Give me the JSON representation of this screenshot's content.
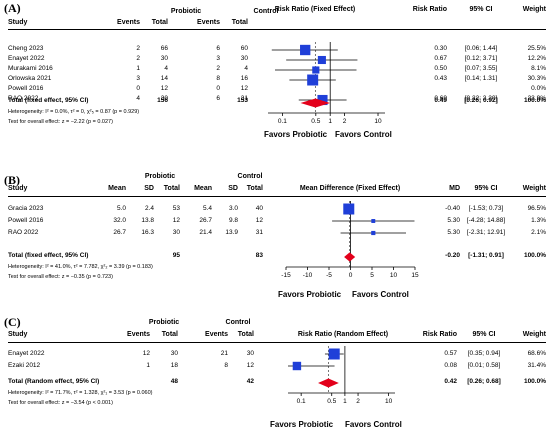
{
  "panels": [
    {
      "label": "(A)",
      "head": {
        "study": "Study",
        "group1": "Probiotic",
        "group2": "Control",
        "g1c1": "Events",
        "g1c2": "Total",
        "g2c1": "Events",
        "g2c2": "Total",
        "plot_title": "Risk Ratio (Fixed Effect)",
        "effect": "Risk Ratio",
        "ci": "95% CI",
        "weight": "Weight"
      },
      "rows": [
        {
          "study": "Cheng 2023",
          "v1": "2",
          "v2": "66",
          "v3": "6",
          "v4": "60",
          "effect": "0.30",
          "ci": "[0.06; 1.44]",
          "weight": "25.5%"
        },
        {
          "study": "Enayet 2022",
          "v1": "2",
          "v2": "30",
          "v3": "3",
          "v4": "30",
          "effect": "0.67",
          "ci": "[0.12; 3.71]",
          "weight": "12.2%"
        },
        {
          "study": "Murakami 2016",
          "v1": "1",
          "v2": "4",
          "v3": "2",
          "v4": "4",
          "effect": "0.50",
          "ci": "[0.07; 3.55]",
          "weight": "8.1%"
        },
        {
          "study": "Orlowska 2021",
          "v1": "3",
          "v2": "14",
          "v3": "8",
          "v4": "16",
          "effect": "0.43",
          "ci": "[0.14; 1.31]",
          "weight": "30.3%"
        },
        {
          "study": "Powell 2016",
          "v1": "0",
          "v2": "12",
          "v3": "0",
          "v4": "12",
          "effect": "",
          "ci": "",
          "weight": "0.0%"
        },
        {
          "study": "RAO 2022",
          "v1": "4",
          "v2": "30",
          "v3": "6",
          "v4": "31",
          "effect": "0.69",
          "ci": "[0.22; 2.20]",
          "weight": "23.9%"
        }
      ],
      "total": {
        "label": "Total (fixed effect, 95% CI)",
        "n1": "156",
        "n2": "153",
        "effect": "0.49",
        "ci": "[0.26; 0.92]",
        "weight": "100.0%"
      },
      "heterogeneity": "Heterogeneity: I² = 0.0%, τ² = 0, χ²₅ = 0.87 (p = 0.929)",
      "overall": "Test for overall effect: z = −2.22 (p = 0.027)",
      "axis_ticks": [
        "0.1",
        "0.5",
        "1",
        "2",
        "10"
      ],
      "favor_left": "Favors Probiotic",
      "favor_right": "Favors Control"
    },
    {
      "label": "(B)",
      "head": {
        "study": "Study",
        "group1": "Probiotic",
        "group2": "Control",
        "g1c1": "Mean",
        "g1c2": "SD",
        "g1c3": "Total",
        "g2c1": "Mean",
        "g2c2": "SD",
        "g2c3": "Total",
        "plot_title": "Mean Difference (Fixed Effect)",
        "effect": "MD",
        "ci": "95% CI",
        "weight": "Weight"
      },
      "rows": [
        {
          "study": "Gracia 2023",
          "v1": "5.0",
          "v2": "2.4",
          "v3": "53",
          "v4": "5.4",
          "v5": "3.0",
          "v6": "40",
          "effect": "-0.40",
          "ci": "[-1.53; 0.73]",
          "weight": "96.5%"
        },
        {
          "study": "Powell 2016",
          "v1": "32.0",
          "v2": "13.8",
          "v3": "12",
          "v4": "26.7",
          "v5": "9.8",
          "v6": "12",
          "effect": "5.30",
          "ci": "[-4.28; 14.88]",
          "weight": "1.3%"
        },
        {
          "study": "RAO 2022",
          "v1": "26.7",
          "v2": "16.3",
          "v3": "30",
          "v4": "21.4",
          "v5": "13.9",
          "v6": "31",
          "effect": "5.30",
          "ci": "[-2.31; 12.91]",
          "weight": "2.1%"
        }
      ],
      "total": {
        "label": "Total (fixed effect, 95% CI)",
        "n1": "95",
        "n2": "83",
        "effect": "-0.20",
        "ci": "[-1.31; 0.91]",
        "weight": "100.0%"
      },
      "heterogeneity": "Heterogeneity: I² = 41.0%, τ² = 7.782, χ²₂ = 3.39 (p = 0.183)",
      "overall": "Test for overall effect: z = −0.35 (p = 0.723)",
      "axis_ticks": [
        "-15",
        "-10",
        "-5",
        "0",
        "5",
        "10",
        "15"
      ],
      "favor_left": "Favors Probiotic",
      "favor_right": "Favors Control"
    },
    {
      "label": "(C)",
      "head": {
        "study": "Study",
        "group1": "Probiotic",
        "group2": "Control",
        "g1c1": "Events",
        "g1c2": "Total",
        "g2c1": "Events",
        "g2c2": "Total",
        "plot_title": "Risk Ratio (Random Effect)",
        "effect": "Risk Ratio",
        "ci": "95% CI",
        "weight": "Weight"
      },
      "rows": [
        {
          "study": "Enayet 2022",
          "v1": "12",
          "v2": "30",
          "v3": "21",
          "v4": "30",
          "effect": "0.57",
          "ci": "[0.35; 0.94]",
          "weight": "68.6%"
        },
        {
          "study": "Ezaki 2012",
          "v1": "1",
          "v2": "18",
          "v3": "8",
          "v4": "12",
          "effect": "0.08",
          "ci": "[0.01; 0.58]",
          "weight": "31.4%"
        }
      ],
      "total": {
        "label": "Total (Random effect, 95% CI)",
        "n1": "48",
        "n2": "42",
        "effect": "0.42",
        "ci": "[0.26; 0.68]",
        "weight": "100.0%"
      },
      "heterogeneity": "Heterogeneity: I² = 71.7%, τ² = 1.328, χ²₁ = 3.53 (p = 0.060)",
      "overall": "Test for overall effect: z = −3.54 (p < 0.001)",
      "axis_ticks": [
        "0.1",
        "0.5",
        "1",
        "2",
        "10"
      ],
      "favor_left": "Favors Probiotic",
      "favor_right": "Favors Control"
    }
  ],
  "chart_data": [
    {
      "type": "forest",
      "title": "Risk Ratio (Fixed Effect)",
      "scale": "log",
      "xlim": [
        0.05,
        14
      ],
      "ticks": [
        0.1,
        0.5,
        1,
        2,
        10
      ],
      "studies": [
        {
          "name": "Cheng 2023",
          "est": 0.3,
          "lo": 0.06,
          "hi": 1.44,
          "weight": 25.5
        },
        {
          "name": "Enayet 2022",
          "est": 0.67,
          "lo": 0.12,
          "hi": 3.71,
          "weight": 12.2
        },
        {
          "name": "Murakami 2016",
          "est": 0.5,
          "lo": 0.07,
          "hi": 3.55,
          "weight": 8.1
        },
        {
          "name": "Orlowska 2021",
          "est": 0.43,
          "lo": 0.14,
          "hi": 1.31,
          "weight": 30.3
        },
        {
          "name": "Powell 2016",
          "est": null,
          "lo": null,
          "hi": null,
          "weight": 0.0
        },
        {
          "name": "RAO 2022",
          "est": 0.69,
          "lo": 0.22,
          "hi": 2.2,
          "weight": 23.9
        }
      ],
      "pooled": {
        "est": 0.49,
        "lo": 0.26,
        "hi": 0.92
      },
      "null_value": 1
    },
    {
      "type": "forest",
      "title": "Mean Difference (Fixed Effect)",
      "scale": "linear",
      "xlim": [
        -15,
        15
      ],
      "ticks": [
        -15,
        -10,
        -5,
        0,
        5,
        10,
        15
      ],
      "studies": [
        {
          "name": "Gracia 2023",
          "est": -0.4,
          "lo": -1.53,
          "hi": 0.73,
          "weight": 96.5
        },
        {
          "name": "Powell 2016",
          "est": 5.3,
          "lo": -4.28,
          "hi": 14.88,
          "weight": 1.3
        },
        {
          "name": "RAO 2022",
          "est": 5.3,
          "lo": -2.31,
          "hi": 12.91,
          "weight": 2.1
        }
      ],
      "pooled": {
        "est": -0.2,
        "lo": -1.31,
        "hi": 0.91
      },
      "null_value": 0
    },
    {
      "type": "forest",
      "title": "Risk Ratio (Random Effect)",
      "scale": "log",
      "xlim": [
        0.05,
        14
      ],
      "ticks": [
        0.1,
        0.5,
        1,
        2,
        10
      ],
      "studies": [
        {
          "name": "Enayet 2022",
          "est": 0.57,
          "lo": 0.35,
          "hi": 0.94,
          "weight": 68.6
        },
        {
          "name": "Ezaki 2012",
          "est": 0.08,
          "lo": 0.01,
          "hi": 0.58,
          "weight": 31.4
        }
      ],
      "pooled": {
        "est": 0.42,
        "lo": 0.26,
        "hi": 0.68
      },
      "null_value": 1
    }
  ],
  "colors": {
    "square": "#1f3fd8",
    "diamond": "#e3001b",
    "pooled_line": "#555555"
  }
}
